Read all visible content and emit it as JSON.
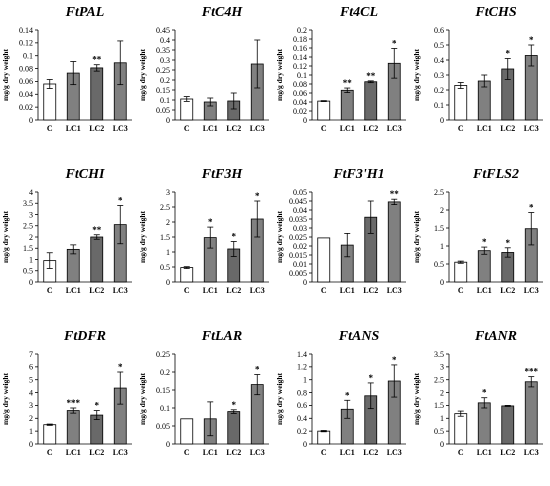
{
  "colors": {
    "control": "#ffffff",
    "lc1": "#808080",
    "lc2": "#696969",
    "lc3": "#808080",
    "stroke": "#000000"
  },
  "chart_data": [
    {
      "type": "bar",
      "title": "FtPAL",
      "ylabel": "mg/g dry weight",
      "categories": [
        "C",
        "LC1",
        "LC2",
        "LC3"
      ],
      "values": [
        0.056,
        0.073,
        0.081,
        0.089
      ],
      "errors": [
        0.007,
        0.018,
        0.005,
        0.034
      ],
      "significance": [
        "",
        "",
        "**",
        ""
      ],
      "ylim": [
        0,
        0.14
      ],
      "yticks": [
        "0",
        "0.02",
        "0.04",
        "0.06",
        "0.08",
        "0.1",
        "0.12",
        "0.14"
      ]
    },
    {
      "type": "bar",
      "title": "FtC4H",
      "ylabel": "mg/g dry weight",
      "categories": [
        "C",
        "LC1",
        "LC2",
        "LC3"
      ],
      "values": [
        0.105,
        0.09,
        0.095,
        0.28
      ],
      "errors": [
        0.012,
        0.02,
        0.04,
        0.12
      ],
      "significance": [
        "",
        "",
        "",
        ""
      ],
      "ylim": [
        0,
        0.45
      ],
      "yticks": [
        "0",
        "0.05",
        "0.1",
        "0.15",
        "0.2",
        "0.25",
        "0.3",
        "0.35",
        "0.4",
        "0.45"
      ]
    },
    {
      "type": "bar",
      "title": "Ft4CL",
      "ylabel": "mg/g dry weight",
      "categories": [
        "C",
        "LC1",
        "LC2",
        "LC3"
      ],
      "values": [
        0.042,
        0.066,
        0.085,
        0.126
      ],
      "errors": [
        0.001,
        0.005,
        0.002,
        0.033
      ],
      "significance": [
        "",
        "**",
        "**",
        "*"
      ],
      "ylim": [
        0,
        0.2
      ],
      "yticks": [
        "0",
        "0.02",
        "0.04",
        "0.06",
        "0.08",
        "0.1",
        "0.12",
        "0.14",
        "0.16",
        "0.18",
        "0.2"
      ]
    },
    {
      "type": "bar",
      "title": "FtCHS",
      "ylabel": "mg/g dry weight",
      "categories": [
        "C",
        "LC1",
        "LC2",
        "LC3"
      ],
      "values": [
        0.23,
        0.26,
        0.34,
        0.43
      ],
      "errors": [
        0.02,
        0.04,
        0.07,
        0.07
      ],
      "significance": [
        "",
        "",
        "*",
        "*"
      ],
      "ylim": [
        0,
        0.6
      ],
      "yticks": [
        "0",
        "0.1",
        "0.2",
        "0.3",
        "0.4",
        "0.5",
        "0.6"
      ]
    },
    {
      "type": "bar",
      "title": "FtCHI",
      "ylabel": "mg/g dry weight",
      "categories": [
        "C",
        "LC1",
        "LC2",
        "LC3"
      ],
      "values": [
        0.95,
        1.45,
        2.0,
        2.55
      ],
      "errors": [
        0.35,
        0.2,
        0.1,
        0.85
      ],
      "significance": [
        "",
        "",
        "**",
        "*"
      ],
      "ylim": [
        0,
        4
      ],
      "yticks": [
        "0",
        "0.5",
        "1",
        "1.5",
        "2",
        "2.5",
        "3",
        "3.5",
        "4"
      ]
    },
    {
      "type": "bar",
      "title": "FtF3H",
      "ylabel": "mg/g dry weight",
      "categories": [
        "C",
        "LC1",
        "LC2",
        "LC3"
      ],
      "values": [
        0.48,
        1.48,
        1.1,
        2.1
      ],
      "errors": [
        0.03,
        0.35,
        0.25,
        0.6
      ],
      "significance": [
        "",
        "*",
        "*",
        "*"
      ],
      "ylim": [
        0,
        3
      ],
      "yticks": [
        "0",
        "0.5",
        "1",
        "1.5",
        "2",
        "2.5",
        "3"
      ]
    },
    {
      "type": "bar",
      "title": "FtF3'H1",
      "ylabel": "mg/g dry weight",
      "categories": [
        "C",
        "LC1",
        "LC2",
        "LC3"
      ],
      "values": [
        0.0245,
        0.0205,
        0.036,
        0.0445
      ],
      "errors": [
        0.0,
        0.0065,
        0.009,
        0.0015
      ],
      "significance": [
        "",
        "",
        "",
        "**"
      ],
      "ylim": [
        0,
        0.05
      ],
      "yticks": [
        "0",
        "0.005",
        "0.01",
        "0.015",
        "0.02",
        "0.025",
        "0.03",
        "0.035",
        "0.04",
        "0.045",
        "0.05"
      ]
    },
    {
      "type": "bar",
      "title": "FtFLS2",
      "ylabel": "mg/g dry weight",
      "categories": [
        "C",
        "LC1",
        "LC2",
        "LC3"
      ],
      "values": [
        0.55,
        0.87,
        0.82,
        1.48
      ],
      "errors": [
        0.03,
        0.1,
        0.13,
        0.45
      ],
      "significance": [
        "",
        "*",
        "*",
        "*"
      ],
      "ylim": [
        0,
        2.5
      ],
      "yticks": [
        "0",
        "0.5",
        "1",
        "1.5",
        "2",
        "2.5"
      ]
    },
    {
      "type": "bar",
      "title": "FtDFR",
      "ylabel": "mg/g dry weight",
      "categories": [
        "C",
        "LC1",
        "LC2",
        "LC3"
      ],
      "values": [
        1.5,
        2.6,
        2.25,
        4.35
      ],
      "errors": [
        0.05,
        0.2,
        0.35,
        1.25
      ],
      "significance": [
        "",
        "***",
        "*",
        "*"
      ],
      "ylim": [
        0,
        7
      ],
      "yticks": [
        "0",
        "1",
        "2",
        "3",
        "4",
        "5",
        "6",
        "7"
      ]
    },
    {
      "type": "bar",
      "title": "FtLAR",
      "ylabel": "mg/g dry weight",
      "categories": [
        "C",
        "LC1",
        "LC2",
        "LC3"
      ],
      "values": [
        0.07,
        0.07,
        0.09,
        0.165
      ],
      "errors": [
        0.0,
        0.047,
        0.005,
        0.028
      ],
      "significance": [
        "",
        "",
        "*",
        "*"
      ],
      "ylim": [
        0,
        0.25
      ],
      "yticks": [
        "0",
        "0.05",
        "0.1",
        "0.15",
        "0.2",
        "0.25"
      ]
    },
    {
      "type": "bar",
      "title": "FtANS",
      "ylabel": "mg/g dry weight",
      "categories": [
        "C",
        "LC1",
        "LC2",
        "LC3"
      ],
      "values": [
        0.2,
        0.54,
        0.75,
        0.98
      ],
      "errors": [
        0.01,
        0.14,
        0.2,
        0.25
      ],
      "significance": [
        "",
        "*",
        "*",
        "*"
      ],
      "ylim": [
        0,
        1.4
      ],
      "yticks": [
        "0",
        "0.2",
        "0.4",
        "0.6",
        "0.8",
        "1",
        "1.2",
        "1.4"
      ]
    },
    {
      "type": "bar",
      "title": "FtANR",
      "ylabel": "mg/g dry weight",
      "categories": [
        "C",
        "LC1",
        "LC2",
        "LC3"
      ],
      "values": [
        1.18,
        1.6,
        1.48,
        2.42
      ],
      "errors": [
        0.1,
        0.2,
        0.02,
        0.2
      ],
      "significance": [
        "",
        "*",
        "",
        "***"
      ],
      "ylim": [
        0,
        3.5
      ],
      "yticks": [
        "0",
        "0.5",
        "1",
        "1.5",
        "2",
        "2.5",
        "3",
        "3.5"
      ]
    }
  ]
}
